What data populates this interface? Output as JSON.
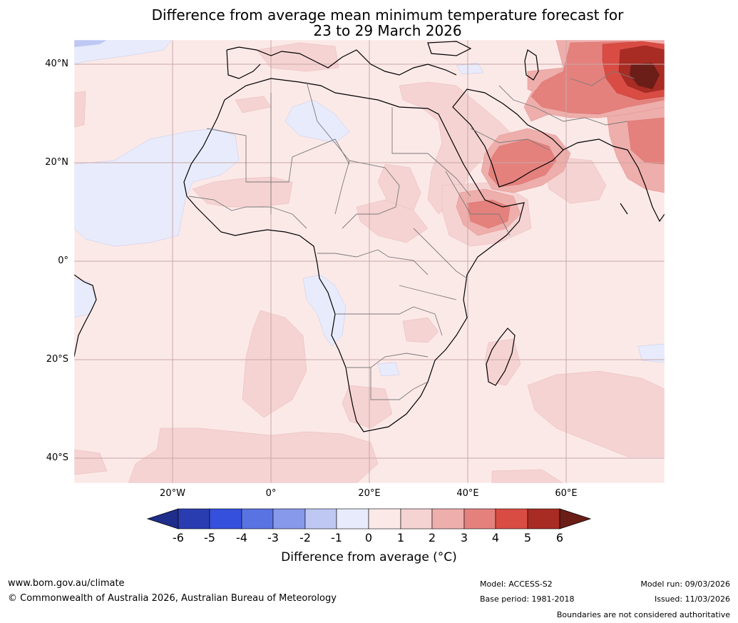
{
  "title": {
    "line1": "Difference from average mean minimum temperature forecast for",
    "line2": "23 to 29 March 2026"
  },
  "map": {
    "lat_labels": [
      "40°N",
      "20°N",
      "0°",
      "20°S",
      "40°S"
    ],
    "lon_labels": [
      "20°W",
      "0°",
      "20°E",
      "40°E",
      "60°E"
    ],
    "gridline_color": "#c9a7a7",
    "background_anomaly_color": "#fbe9e8"
  },
  "colorbar": {
    "ticks": [
      "-6",
      "-5",
      "-4",
      "-3",
      "-2",
      "-1",
      "0",
      "1",
      "2",
      "3",
      "4",
      "5",
      "6"
    ],
    "colors": [
      "#1f2e8a",
      "#2a3db0",
      "#3550dc",
      "#5a73e2",
      "#8699ea",
      "#bec8f3",
      "#e8ebfb",
      "#fbe9e8",
      "#f5d3d2",
      "#eeaeab",
      "#e5817d",
      "#d94c44",
      "#a82b24",
      "#6b1d17"
    ],
    "label": "Difference from average (°C)"
  },
  "footer": {
    "website": "www.bom.gov.au/climate",
    "copyright": "© Commonwealth of Australia 2026, Australian Bureau of Meteorology",
    "model": "Model: ACCESS-S2",
    "base_period": "Base period: 1981-2018",
    "model_run": "Model run: 09/03/2026",
    "issued": "Issued: 11/03/2026",
    "disclaimer": "Boundaries are not considered authoritative"
  }
}
